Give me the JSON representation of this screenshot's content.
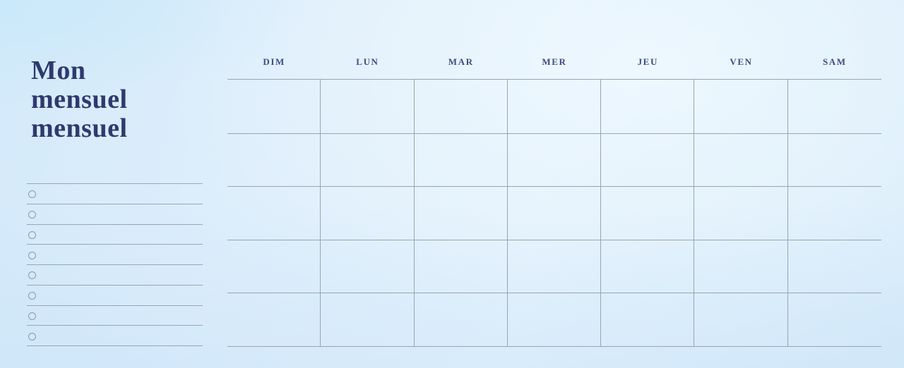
{
  "page": {
    "title_lines": [
      "Mon",
      "mensuel",
      "mensuel"
    ]
  },
  "checklist": {
    "item_count": 8,
    "items": [
      {
        "label": ""
      },
      {
        "label": ""
      },
      {
        "label": ""
      },
      {
        "label": ""
      },
      {
        "label": ""
      },
      {
        "label": ""
      },
      {
        "label": ""
      },
      {
        "label": ""
      }
    ]
  },
  "calendar": {
    "day_headers": [
      "DIM",
      "LUN",
      "MAR",
      "MER",
      "JEU",
      "VEN",
      "SAM"
    ],
    "rows": 5,
    "columns": 7
  },
  "colors": {
    "title": "#2e3a6e",
    "day_header": "#3e4c82",
    "grid_line": "#9aa4b2",
    "checklist_line": "#9aa6b4",
    "circle_outline": "#8d99aa",
    "background_base": "#e0effc"
  }
}
